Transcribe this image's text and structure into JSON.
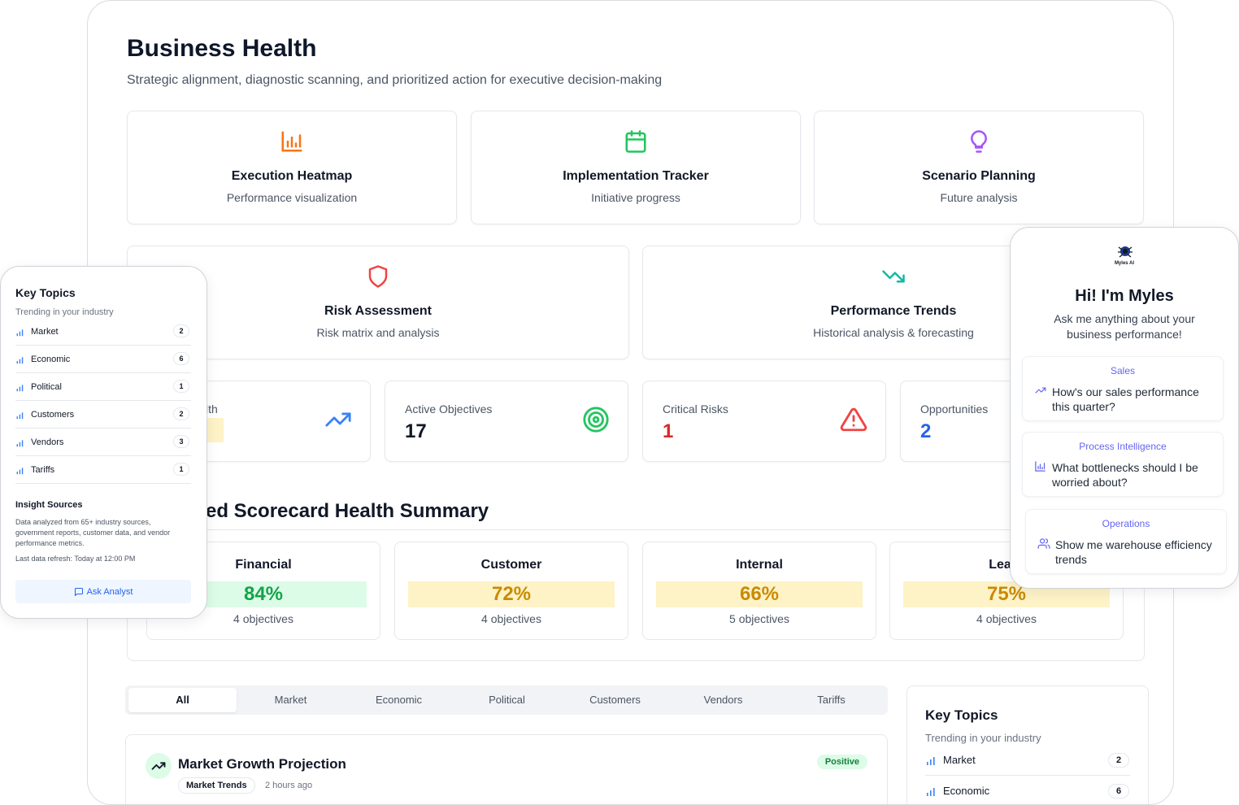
{
  "header": {
    "title": "Business Health",
    "subtitle": "Strategic alignment, diagnostic scanning, and prioritized action for executive decision-making"
  },
  "nav_cards": [
    {
      "title": "Execution Heatmap",
      "subtitle": "Performance visualization",
      "icon": "bar-chart-icon",
      "color": "#f97316"
    },
    {
      "title": "Implementation Tracker",
      "subtitle": "Initiative progress",
      "icon": "calendar-icon",
      "color": "#22c55e"
    },
    {
      "title": "Scenario Planning",
      "subtitle": "Future analysis",
      "icon": "lightbulb-icon",
      "color": "#a855f7"
    },
    {
      "title": "Risk Assessment",
      "subtitle": "Risk matrix and analysis",
      "icon": "shield-icon",
      "color": "#ef4444"
    },
    {
      "title": "Performance Trends",
      "subtitle": "Historical analysis & forecasting",
      "icon": "trending-down-icon",
      "color": "#14b8a6"
    }
  ],
  "metrics": [
    {
      "label": "lth",
      "value": "",
      "icon": "trending-up-icon",
      "color": "#3b82f6"
    },
    {
      "label": "Active Objectives",
      "value": "17",
      "icon": "target-icon",
      "color": "#111827"
    },
    {
      "label": "Critical Risks",
      "value": "1",
      "icon": "alert-triangle-icon",
      "color": "#dc2626"
    },
    {
      "label": "Opportunities",
      "value": "2",
      "icon": "",
      "color": "#2563eb"
    }
  ],
  "scorecard": {
    "title": "ed Scorecard Health Summary",
    "items": [
      {
        "name": "Financial",
        "percent": "84%",
        "objectives": "4 objectives",
        "bg": "#dcfce7",
        "fg": "#16a34a"
      },
      {
        "name": "Customer",
        "percent": "72%",
        "objectives": "4 objectives",
        "bg": "#fef3c7",
        "fg": "#ca8a04"
      },
      {
        "name": "Internal",
        "percent": "66%",
        "objectives": "5 objectives",
        "bg": "#fef3c7",
        "fg": "#ca8a04"
      },
      {
        "name": "Learn",
        "percent": "75%",
        "objectives": "4 objectives",
        "bg": "#fef3c7",
        "fg": "#ca8a04"
      }
    ]
  },
  "tabs": [
    "All",
    "Market",
    "Economic",
    "Political",
    "Customers",
    "Vendors",
    "Tariffs"
  ],
  "insight": {
    "title": "Market Growth Projection",
    "tag": "Market Trends",
    "time": "2 hours ago",
    "badge": "Positive"
  },
  "key_topics_side": {
    "title": "Key Topics",
    "subtitle": "Trending in your industry",
    "items": [
      {
        "label": "Market",
        "count": "2"
      },
      {
        "label": "Economic",
        "count": "6"
      }
    ]
  },
  "key_topics_overlay": {
    "title": "Key Topics",
    "subtitle": "Trending in your industry",
    "items": [
      {
        "label": "Market",
        "count": "2"
      },
      {
        "label": "Economic",
        "count": "6"
      },
      {
        "label": "Political",
        "count": "1"
      },
      {
        "label": "Customers",
        "count": "2"
      },
      {
        "label": "Vendors",
        "count": "3"
      },
      {
        "label": "Tariffs",
        "count": "1"
      }
    ],
    "sources_title": "Insight Sources",
    "sources_text": "Data analyzed from 65+ industry sources, government reports, customer data, and vendor performance metrics.",
    "refresh": "Last data refresh: Today at 12:00 PM",
    "ask_button": "Ask Analyst"
  },
  "assistant": {
    "logo_text": "Myles AI",
    "greeting": "Hi! I'm Myles",
    "intro": "Ask me anything about your business performance!",
    "suggestions": [
      {
        "category": "Sales",
        "question": "How's our sales performance this quarter?",
        "icon": "trending-up-icon"
      },
      {
        "category": "Process Intelligence",
        "question": "What bottlenecks should I be worried about?",
        "icon": "bar-chart-icon"
      },
      {
        "category": "Operations",
        "question": "Show me warehouse efficiency trends",
        "icon": "users-icon"
      }
    ]
  }
}
